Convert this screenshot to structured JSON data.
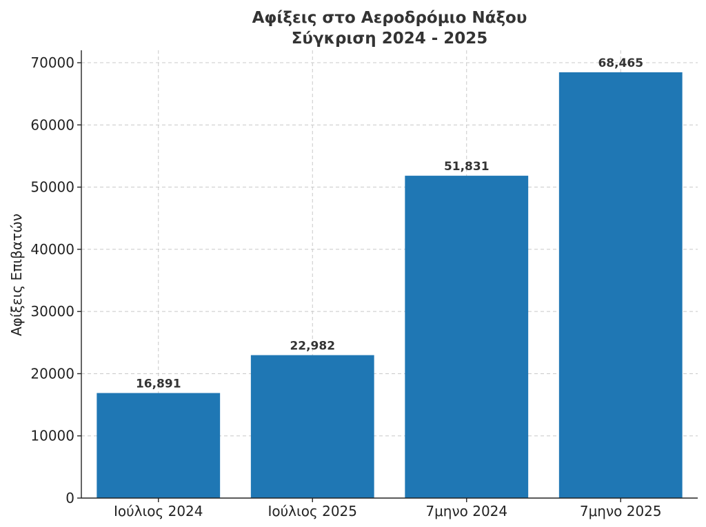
{
  "chart_data": {
    "type": "bar",
    "title": "Αφίξεις στο Αεροδρόμιο Νάξου",
    "subtitle": "Σύγκριση 2024 - 2025",
    "xlabel": "",
    "ylabel": "Αφίξεις Επιβατών",
    "categories": [
      "Ιούλιος 2024",
      "Ιούλιος 2025",
      "7μηνο 2024",
      "7μηνο 2025"
    ],
    "values": [
      16891,
      22982,
      51831,
      68465
    ],
    "data_labels": [
      "16,891",
      "22,982",
      "51,831",
      "68,465"
    ],
    "ylim": [
      0,
      72000
    ],
    "yticks": [
      "0",
      "10000",
      "20000",
      "30000",
      "40000",
      "50000",
      "60000",
      "70000"
    ],
    "grid": true,
    "bar_color": "#1f77b4"
  }
}
